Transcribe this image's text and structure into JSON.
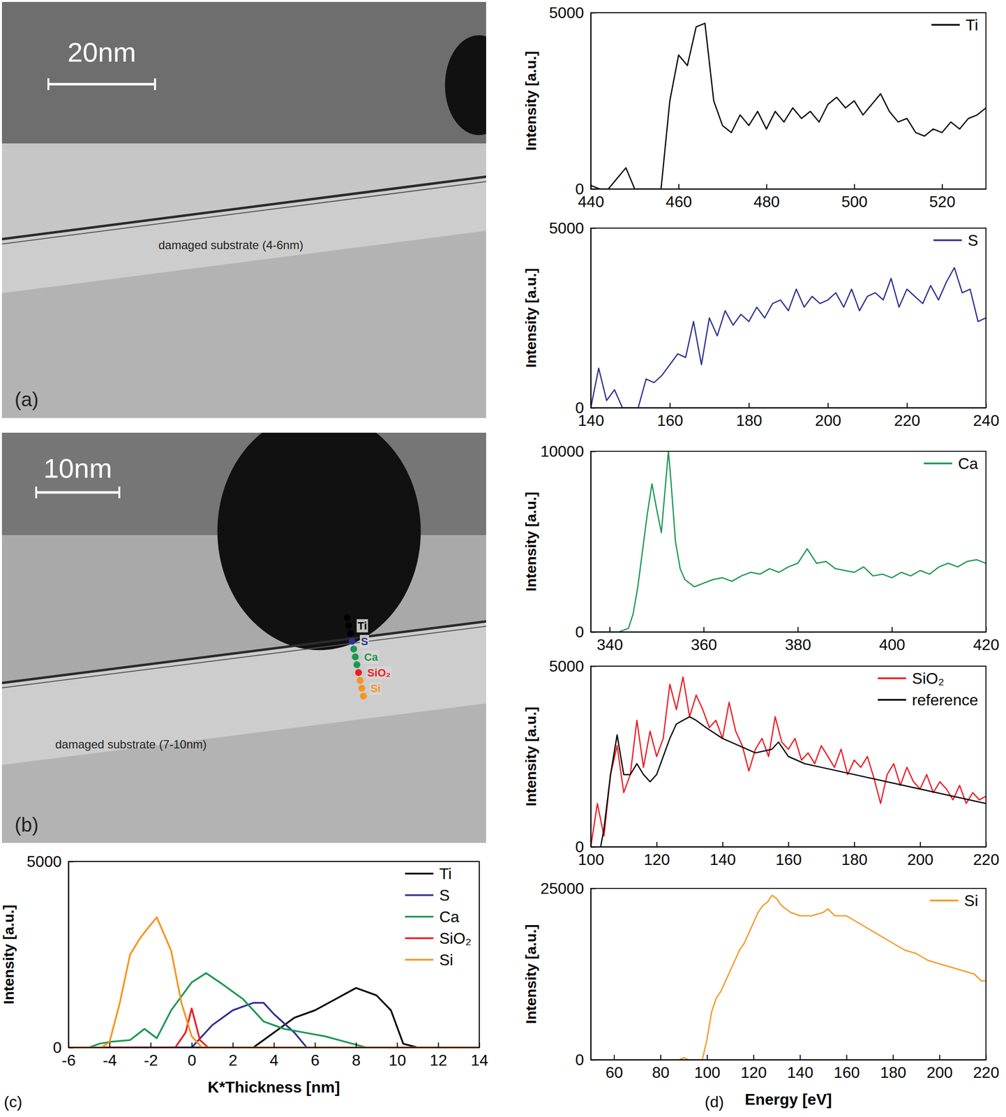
{
  "images": [
    {
      "panel_label": "(a)",
      "scale_bar": "20nm",
      "label": "damaged substrate (4-6nm)"
    },
    {
      "panel_label": "(b)",
      "scale_bar": "10nm",
      "label": "damaged substrate (7-10nm)",
      "markers": [
        {
          "name": "Ti",
          "color": "#000000"
        },
        {
          "name": "S",
          "color": "#2e3192"
        },
        {
          "name": "Ca",
          "color": "#1a9850"
        },
        {
          "name": "SiO₂",
          "color": "#ed1c24"
        },
        {
          "name": "Si",
          "color": "#f7941d"
        }
      ]
    }
  ],
  "chart_data": [
    {
      "type": "line",
      "panel_label": "(c)",
      "x_label": "K*Thickness [nm]",
      "y_label": "Intensity [a.u.]",
      "xlim": [
        -6,
        14
      ],
      "ylim": [
        0,
        5000
      ],
      "xticks": [
        -6,
        -4,
        -2,
        0,
        2,
        4,
        6,
        8,
        10,
        12,
        14
      ],
      "yticks": [
        0,
        5000
      ],
      "legend": "top-right",
      "series": [
        {
          "name": "Ti",
          "color": "#000000",
          "x": [
            -6,
            3,
            4,
            5,
            6,
            7,
            8,
            9,
            9.7,
            10.3,
            11,
            14
          ],
          "values": [
            0,
            0,
            400,
            800,
            1000,
            1300,
            1600,
            1400,
            1000,
            100,
            0,
            0
          ]
        },
        {
          "name": "S",
          "color": "#2e3192",
          "x": [
            -6,
            0,
            1,
            2,
            3,
            3.5,
            4,
            5,
            5.6,
            14
          ],
          "values": [
            0,
            0,
            600,
            1000,
            1200,
            1200,
            900,
            400,
            0,
            0
          ]
        },
        {
          "name": "Ca",
          "color": "#1a9850",
          "x": [
            -6,
            -5,
            -4.5,
            -4,
            -3,
            -2.3,
            -1.7,
            -1,
            0,
            0.7,
            1.5,
            2.5,
            3.5,
            4.5,
            5.5,
            6.5,
            7.5,
            8.5,
            14
          ],
          "values": [
            0,
            0,
            100,
            150,
            200,
            500,
            250,
            1000,
            1750,
            2000,
            1700,
            1300,
            700,
            500,
            400,
            300,
            150,
            0,
            0
          ]
        },
        {
          "name": "SiO₂",
          "color": "#ed1c24",
          "x": [
            -6,
            -0.8,
            -0.3,
            0,
            0.4,
            0.8,
            14
          ],
          "values": [
            0,
            0,
            400,
            1050,
            200,
            0,
            0
          ]
        },
        {
          "name": "Si",
          "color": "#f7941d",
          "x": [
            -6,
            -4.4,
            -4,
            -3.5,
            -3,
            -2.5,
            -2,
            -1.7,
            -1,
            -0.5,
            0,
            0.5,
            14
          ],
          "values": [
            0,
            0,
            150,
            1200,
            2500,
            2950,
            3300,
            3500,
            2600,
            1200,
            300,
            0,
            0
          ]
        }
      ]
    },
    {
      "type": "line",
      "panel_label": "(d)",
      "y_label": "Intensity [a.u.]",
      "xlim": [
        440,
        530
      ],
      "ylim": [
        0,
        5000
      ],
      "xticks": [
        440,
        460,
        480,
        500,
        520
      ],
      "yticks": [
        0,
        5000
      ],
      "legend": "top-right",
      "series": [
        {
          "name": "Ti",
          "color": "#000000",
          "x": [
            440,
            442,
            444,
            446,
            448,
            450,
            452,
            454,
            456,
            458,
            460,
            462,
            464,
            466,
            468,
            470,
            472,
            474,
            476,
            478,
            480,
            482,
            484,
            486,
            488,
            490,
            492,
            494,
            496,
            498,
            500,
            502,
            504,
            506,
            508,
            510,
            512,
            514,
            516,
            518,
            520,
            522,
            524,
            526,
            528,
            530
          ],
          "values": [
            100,
            0,
            0,
            300,
            600,
            0,
            0,
            0,
            0,
            2500,
            3800,
            3500,
            4600,
            4700,
            2500,
            1800,
            1600,
            2100,
            1800,
            2200,
            1700,
            2200,
            1900,
            2300,
            2000,
            2200,
            1900,
            2400,
            2600,
            2300,
            2500,
            2100,
            2400,
            2700,
            2200,
            1900,
            2000,
            1600,
            1500,
            1700,
            1600,
            1900,
            1700,
            2000,
            2100,
            2300
          ]
        }
      ]
    },
    {
      "type": "line",
      "y_label": "Intensity [a.u.]",
      "xlim": [
        140,
        240
      ],
      "ylim": [
        0,
        5000
      ],
      "xticks": [
        140,
        160,
        180,
        200,
        220,
        240
      ],
      "yticks": [
        0,
        5000
      ],
      "legend": "top-right",
      "series": [
        {
          "name": "S",
          "color": "#2e3192",
          "x": [
            140,
            142,
            144,
            146,
            148,
            150,
            152,
            154,
            156,
            158,
            160,
            162,
            164,
            166,
            168,
            170,
            172,
            174,
            176,
            178,
            180,
            182,
            184,
            186,
            188,
            190,
            192,
            194,
            196,
            198,
            200,
            202,
            204,
            206,
            208,
            210,
            212,
            214,
            216,
            218,
            220,
            222,
            224,
            226,
            228,
            230,
            232,
            234,
            236,
            238,
            240
          ],
          "values": [
            0,
            1100,
            200,
            500,
            0,
            0,
            0,
            800,
            700,
            900,
            1200,
            1500,
            1400,
            2400,
            1200,
            2500,
            2000,
            2700,
            2300,
            2600,
            2400,
            2800,
            2500,
            2900,
            3000,
            2700,
            3300,
            2800,
            3100,
            2900,
            3000,
            3200,
            2800,
            3300,
            2700,
            3100,
            3200,
            3000,
            3600,
            2800,
            3300,
            3100,
            2900,
            3400,
            3000,
            3500,
            3900,
            3200,
            3300,
            2400,
            2500
          ]
        }
      ]
    },
    {
      "type": "line",
      "y_label": "Intensity [a.u.]",
      "xlim": [
        336,
        420
      ],
      "ylim": [
        0,
        10000
      ],
      "xticks": [
        340,
        360,
        380,
        400,
        420
      ],
      "yticks": [
        0,
        10000
      ],
      "legend": "top-right",
      "series": [
        {
          "name": "Ca",
          "color": "#1a9850",
          "x": [
            336,
            338,
            340,
            342,
            344,
            345,
            346,
            347,
            348,
            349,
            350,
            351,
            352,
            352.5,
            353,
            354,
            355,
            356,
            358,
            360,
            362,
            364,
            366,
            368,
            370,
            372,
            374,
            376,
            378,
            380,
            382,
            384,
            386,
            388,
            390,
            392,
            394,
            396,
            398,
            400,
            402,
            404,
            406,
            408,
            410,
            412,
            414,
            416,
            418,
            420
          ],
          "values": [
            0,
            0,
            0,
            0,
            200,
            1000,
            2500,
            4500,
            6500,
            8200,
            6800,
            5500,
            8500,
            10000,
            8500,
            5000,
            3500,
            2900,
            2500,
            2700,
            2900,
            3000,
            2800,
            3100,
            3300,
            3200,
            3500,
            3300,
            3600,
            3800,
            4600,
            3800,
            3900,
            3500,
            3400,
            3300,
            3600,
            3100,
            3200,
            3000,
            3300,
            3100,
            3400,
            3200,
            3600,
            3800,
            3600,
            3900,
            4000,
            3800
          ]
        }
      ]
    },
    {
      "type": "line",
      "y_label": "Intensity [a.u.]",
      "xlim": [
        100,
        220
      ],
      "ylim": [
        0,
        5000
      ],
      "xticks": [
        100,
        120,
        140,
        160,
        180,
        200,
        220
      ],
      "yticks": [
        0,
        5000
      ],
      "legend": "top-right",
      "series": [
        {
          "name": "SiO₂",
          "color": "#ed1c24",
          "x": [
            100,
            102,
            104,
            106,
            108,
            110,
            112,
            114,
            116,
            118,
            120,
            122,
            124,
            126,
            128,
            130,
            132,
            134,
            136,
            138,
            140,
            142,
            144,
            146,
            148,
            150,
            152,
            154,
            156,
            158,
            160,
            162,
            164,
            166,
            168,
            170,
            172,
            174,
            176,
            178,
            180,
            182,
            184,
            186,
            188,
            190,
            192,
            194,
            196,
            198,
            200,
            202,
            204,
            206,
            208,
            210,
            212,
            214,
            216,
            218,
            220
          ],
          "values": [
            0,
            1200,
            300,
            2000,
            2800,
            1500,
            2000,
            3500,
            2200,
            3200,
            2500,
            3000,
            4500,
            3800,
            4700,
            3600,
            4200,
            3800,
            3300,
            3500,
            3000,
            4000,
            3200,
            2800,
            2100,
            2700,
            3000,
            2500,
            3600,
            2900,
            2700,
            3000,
            2400,
            2600,
            2300,
            2800,
            2500,
            2200,
            2700,
            2000,
            2400,
            2200,
            2500,
            1900,
            1200,
            2000,
            2300,
            1700,
            2200,
            1800,
            1600,
            2000,
            1500,
            1800,
            1600,
            1300,
            1700,
            1200,
            1500,
            1300,
            1400
          ]
        },
        {
          "name": "reference",
          "color": "#000000",
          "x": [
            103,
            104,
            106,
            108,
            110,
            112,
            114,
            116,
            118,
            120,
            122,
            124,
            126,
            128,
            130,
            132,
            135,
            140,
            145,
            150,
            155,
            157,
            160,
            165,
            170,
            180,
            190,
            200,
            210,
            220
          ],
          "values": [
            0,
            500,
            2000,
            3100,
            2000,
            2000,
            2300,
            2000,
            1800,
            2000,
            2500,
            3000,
            3400,
            3500,
            3600,
            3500,
            3300,
            3000,
            2800,
            2600,
            2700,
            2900,
            2500,
            2300,
            2200,
            2000,
            1800,
            1600,
            1400,
            1200
          ]
        }
      ]
    },
    {
      "type": "line",
      "x_label": "Energy [eV]",
      "y_label": "Intensity [a.u.]",
      "xlim": [
        50,
        220
      ],
      "ylim": [
        0,
        25000
      ],
      "xticks": [
        60,
        80,
        100,
        120,
        140,
        160,
        180,
        200,
        220
      ],
      "yticks": [
        0,
        25000
      ],
      "legend": "top-right",
      "series": [
        {
          "name": "Si",
          "color": "#f7941d",
          "x": [
            88,
            90,
            92,
            96,
            98,
            100,
            102,
            104,
            106,
            108,
            110,
            112,
            114,
            116,
            118,
            120,
            122,
            124,
            126,
            128,
            130,
            132,
            134,
            136,
            140,
            145,
            150,
            152,
            155,
            160,
            165,
            170,
            175,
            180,
            185,
            190,
            195,
            200,
            205,
            210,
            215,
            218,
            220
          ],
          "values": [
            0,
            300,
            0,
            0,
            0,
            3000,
            7000,
            9000,
            10000,
            11500,
            13000,
            14500,
            16000,
            17000,
            18500,
            20000,
            21500,
            22500,
            23000,
            24000,
            23500,
            22500,
            22000,
            21500,
            21000,
            21000,
            21500,
            22000,
            21000,
            21000,
            20000,
            19000,
            18000,
            17000,
            16000,
            15500,
            14500,
            14000,
            13500,
            13000,
            12500,
            11500,
            11500
          ]
        }
      ]
    }
  ]
}
